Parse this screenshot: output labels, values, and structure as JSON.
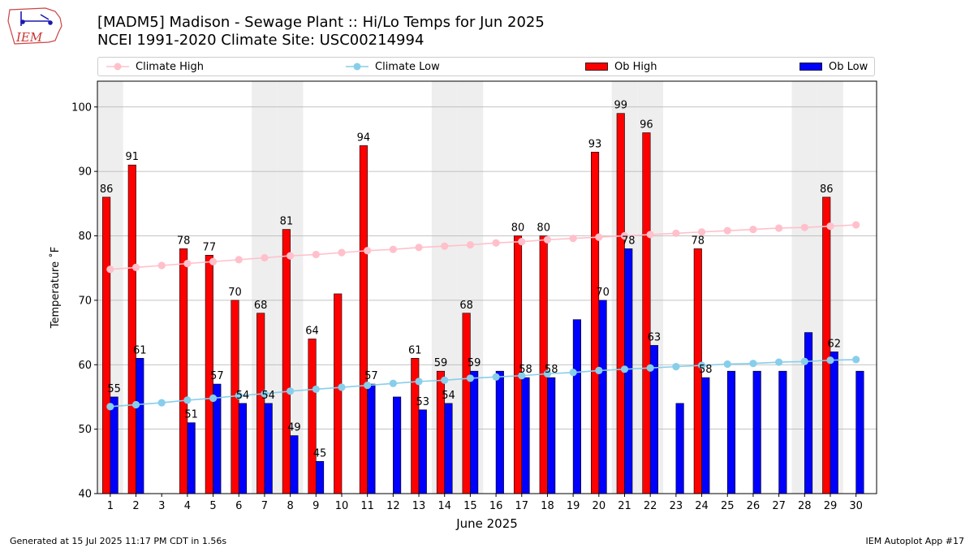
{
  "header": {
    "logo_text": "IEM",
    "title_line1": "[MADM5] Madison - Sewage Plant :: Hi/Lo Temps for Jun 2025",
    "title_line2": "NCEI 1991-2020 Climate Site: USC00214994"
  },
  "legend": {
    "placement": "top, full width",
    "items": [
      {
        "label": "Climate High",
        "color": "#ffc0cb",
        "kind": "line"
      },
      {
        "label": "Climate Low",
        "color": "#87ceeb",
        "kind": "line"
      },
      {
        "label": "Ob High",
        "color": "#ff0000",
        "kind": "bar"
      },
      {
        "label": "Ob Low",
        "color": "#0000ff",
        "kind": "bar"
      }
    ]
  },
  "footer": {
    "left": "Generated at 15 Jul 2025 11:17 PM CDT in 1.56s",
    "right": "IEM Autoplot App #17"
  },
  "chart_data": {
    "type": "bar",
    "xlabel": "June 2025",
    "ylabel": "Temperature ˚F",
    "ylim": [
      40,
      104
    ],
    "yticks": [
      40,
      50,
      60,
      70,
      80,
      90,
      100
    ],
    "grid": "horizontal",
    "weekend_shading_color": "#eeeeee",
    "weekend_days": [
      1,
      7,
      8,
      14,
      15,
      21,
      22,
      28,
      29
    ],
    "categories": [
      "1",
      "2",
      "3",
      "4",
      "5",
      "6",
      "7",
      "8",
      "9",
      "10",
      "11",
      "12",
      "13",
      "14",
      "15",
      "16",
      "17",
      "18",
      "19",
      "20",
      "21",
      "22",
      "23",
      "24",
      "25",
      "26",
      "27",
      "28",
      "29",
      "30"
    ],
    "series": [
      {
        "name": "Ob High",
        "type": "bar",
        "color": "#ff0000",
        "values": [
          86,
          91,
          null,
          78,
          77,
          70,
          68,
          81,
          64,
          71,
          94,
          null,
          61,
          59,
          68,
          null,
          80,
          80,
          null,
          93,
          99,
          96,
          null,
          78,
          null,
          null,
          null,
          null,
          86,
          null
        ]
      },
      {
        "name": "Ob Low",
        "type": "bar",
        "color": "#0000ff",
        "values": [
          55,
          61,
          null,
          51,
          57,
          54,
          54,
          49,
          45,
          null,
          57,
          55,
          53,
          54,
          59,
          59,
          58,
          58,
          67,
          70,
          78,
          63,
          54,
          58,
          59,
          59,
          59,
          65,
          62,
          59
        ]
      },
      {
        "name": "Climate High",
        "type": "line",
        "color": "#ffc0cb",
        "values": [
          74.8,
          75.1,
          75.4,
          75.7,
          76.0,
          76.3,
          76.6,
          76.9,
          77.1,
          77.4,
          77.7,
          77.9,
          78.2,
          78.4,
          78.6,
          78.9,
          79.1,
          79.4,
          79.6,
          79.8,
          80.0,
          80.2,
          80.4,
          80.6,
          80.8,
          81.0,
          81.2,
          81.3,
          81.5,
          81.7
        ]
      },
      {
        "name": "Climate Low",
        "type": "line",
        "color": "#87ceeb",
        "values": [
          53.5,
          53.8,
          54.1,
          54.5,
          54.8,
          55.2,
          55.5,
          55.9,
          56.2,
          56.5,
          56.8,
          57.1,
          57.4,
          57.6,
          57.9,
          58.1,
          58.3,
          58.6,
          58.8,
          59.1,
          59.3,
          59.5,
          59.7,
          59.9,
          60.1,
          60.2,
          60.4,
          60.5,
          60.7,
          60.8
        ]
      }
    ],
    "data_labels": {
      "Ob High": [
        86,
        91,
        null,
        78,
        77,
        70,
        68,
        81,
        64,
        null,
        94,
        null,
        61,
        59,
        68,
        null,
        80,
        80,
        null,
        93,
        99,
        96,
        null,
        78,
        null,
        null,
        null,
        null,
        86,
        null
      ],
      "Ob Low": [
        55,
        61,
        null,
        51,
        57,
        54,
        54,
        49,
        45,
        null,
        57,
        null,
        53,
        54,
        59,
        null,
        58,
        58,
        null,
        70,
        78,
        63,
        null,
        58,
        null,
        null,
        null,
        null,
        62,
        null
      ]
    }
  }
}
